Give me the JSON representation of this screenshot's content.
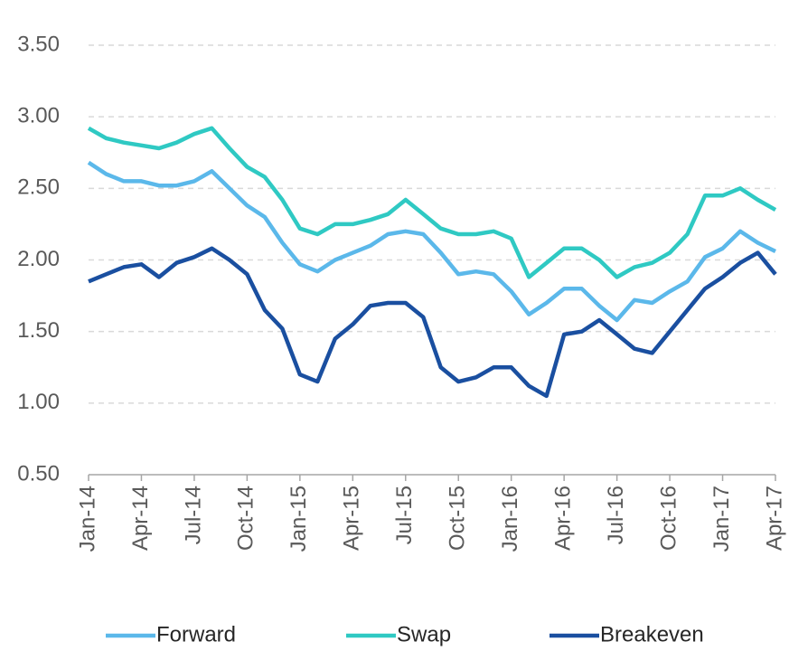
{
  "chart_data": {
    "type": "line",
    "categories": [
      "Jan-14",
      null,
      null,
      "Apr-14",
      null,
      null,
      "Jul-14",
      null,
      null,
      "Oct-14",
      null,
      null,
      "Jan-15",
      null,
      null,
      "Apr-15",
      null,
      null,
      "Jul-15",
      null,
      null,
      "Oct-15",
      null,
      null,
      "Jan-16",
      null,
      null,
      "Apr-16",
      null,
      null,
      "Jul-16",
      null,
      null,
      "Oct-16",
      null,
      null,
      "Jan-17",
      null,
      null,
      "Apr-17"
    ],
    "series": [
      {
        "name": "Forward",
        "color": "#5bb8ea",
        "values": [
          2.68,
          2.6,
          2.55,
          2.55,
          2.52,
          2.52,
          2.55,
          2.62,
          2.5,
          2.38,
          2.3,
          2.12,
          1.97,
          1.92,
          2.0,
          2.05,
          2.1,
          2.18,
          2.2,
          2.18,
          2.05,
          1.9,
          1.92,
          1.9,
          1.78,
          1.62,
          1.7,
          1.8,
          1.8,
          1.68,
          1.58,
          1.72,
          1.7,
          1.78,
          1.85,
          2.02,
          2.08,
          2.2,
          2.12,
          2.06
        ]
      },
      {
        "name": "Swap",
        "color": "#2fc9c3",
        "values": [
          2.92,
          2.85,
          2.82,
          2.8,
          2.78,
          2.82,
          2.88,
          2.92,
          2.78,
          2.65,
          2.58,
          2.42,
          2.22,
          2.18,
          2.25,
          2.25,
          2.28,
          2.32,
          2.42,
          2.32,
          2.22,
          2.18,
          2.18,
          2.2,
          2.15,
          1.88,
          1.98,
          2.08,
          2.08,
          2.0,
          1.88,
          1.95,
          1.98,
          2.05,
          2.18,
          2.45,
          2.45,
          2.5,
          2.42,
          2.35
        ]
      },
      {
        "name": "Breakeven",
        "color": "#1a4fa0",
        "values": [
          1.85,
          1.9,
          1.95,
          1.97,
          1.88,
          1.98,
          2.02,
          2.08,
          2.0,
          1.9,
          1.65,
          1.52,
          1.2,
          1.15,
          1.45,
          1.55,
          1.68,
          1.7,
          1.7,
          1.6,
          1.25,
          1.15,
          1.18,
          1.25,
          1.25,
          1.12,
          1.05,
          1.48,
          1.5,
          1.58,
          1.48,
          1.38,
          1.35,
          1.5,
          1.65,
          1.8,
          1.88,
          1.98,
          2.05,
          1.9
        ]
      }
    ],
    "ylim": [
      0.5,
      3.5
    ],
    "yticks": [
      {
        "value": 0.5,
        "label": "0.50"
      },
      {
        "value": 1,
        "label": "1.00"
      },
      {
        "value": 1.5,
        "label": "1.50"
      },
      {
        "value": 2,
        "label": "2.00"
      },
      {
        "value": 2.5,
        "label": "2.50"
      },
      {
        "value": 3,
        "label": "3.00"
      },
      {
        "value": 3.5,
        "label": "3.50"
      }
    ],
    "grid": true,
    "legend": "bottom"
  }
}
